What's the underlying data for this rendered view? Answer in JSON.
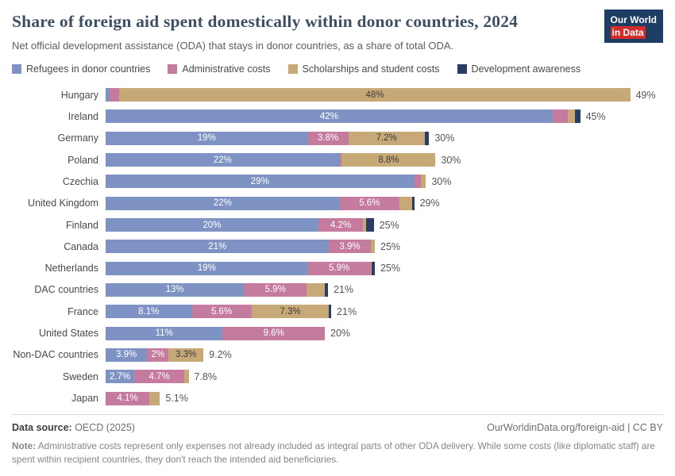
{
  "header": {
    "title": "Share of foreign aid spent domestically within donor countries, 2024",
    "subtitle": "Net official development assistance (ODA) that stays in donor countries, as a share of total ODA.",
    "logo": {
      "line1": "Our World",
      "line2": "in Data"
    }
  },
  "legend": [
    {
      "label": "Refugees in donor countries",
      "color": "#7e93c4"
    },
    {
      "label": "Administrative costs",
      "color": "#c47b9d"
    },
    {
      "label": "Scholarships and student costs",
      "color": "#c7a877"
    },
    {
      "label": "Development awareness",
      "color": "#2b3d62"
    }
  ],
  "chart_data": {
    "type": "bar",
    "orientation": "horizontal",
    "stacked": true,
    "unit": "%",
    "xlim": [
      0,
      50
    ],
    "series_names": [
      "Refugees in donor countries",
      "Administrative costs",
      "Scholarships and student costs",
      "Development awareness"
    ],
    "rows": [
      {
        "country": "Hungary",
        "values": [
          0.4,
          0.9,
          48,
          0
        ],
        "labels": [
          "",
          "",
          "48%",
          ""
        ],
        "total": "49%"
      },
      {
        "country": "Ireland",
        "values": [
          42,
          1.4,
          0.7,
          0.5
        ],
        "labels": [
          "42%",
          "",
          "",
          ""
        ],
        "total": "45%"
      },
      {
        "country": "Germany",
        "values": [
          19,
          3.8,
          7.2,
          0.4
        ],
        "labels": [
          "19%",
          "3.8%",
          "7.2%",
          ""
        ],
        "total": "30%"
      },
      {
        "country": "Poland",
        "values": [
          22,
          0.2,
          8.8,
          0
        ],
        "labels": [
          "22%",
          "",
          "8.8%",
          ""
        ],
        "total": "30%"
      },
      {
        "country": "Czechia",
        "values": [
          29,
          0.6,
          0.5,
          0
        ],
        "labels": [
          "29%",
          "",
          "",
          ""
        ],
        "total": "30%"
      },
      {
        "country": "United Kingdom",
        "values": [
          22,
          5.6,
          1.2,
          0.2
        ],
        "labels": [
          "22%",
          "5.6%",
          "",
          ""
        ],
        "total": "29%"
      },
      {
        "country": "Finland",
        "values": [
          20,
          4.2,
          0.3,
          0.7
        ],
        "labels": [
          "20%",
          "4.2%",
          "",
          ""
        ],
        "total": "25%"
      },
      {
        "country": "Canada",
        "values": [
          21,
          3.9,
          0.4,
          0
        ],
        "labels": [
          "21%",
          "3.9%",
          "",
          ""
        ],
        "total": "25%"
      },
      {
        "country": "Netherlands",
        "values": [
          19,
          5.9,
          0.1,
          0.3
        ],
        "labels": [
          "19%",
          "5.9%",
          "",
          ""
        ],
        "total": "25%"
      },
      {
        "country": "DAC countries",
        "values": [
          13,
          5.9,
          1.7,
          0.3
        ],
        "labels": [
          "13%",
          "5.9%",
          "",
          ""
        ],
        "total": "21%"
      },
      {
        "country": "France",
        "values": [
          8.1,
          5.6,
          7.3,
          0.2
        ],
        "labels": [
          "8.1%",
          "5.6%",
          "7.3%",
          ""
        ],
        "total": "21%"
      },
      {
        "country": "United States",
        "values": [
          11,
          9.6,
          0,
          0
        ],
        "labels": [
          "11%",
          "9.6%",
          "",
          ""
        ],
        "total": "20%"
      },
      {
        "country": "Non-DAC countries",
        "values": [
          3.9,
          2,
          3.3,
          0
        ],
        "labels": [
          "3.9%",
          "2%",
          "3.3%",
          ""
        ],
        "total": "9.2%"
      },
      {
        "country": "Sweden",
        "values": [
          2.7,
          4.7,
          0.4,
          0
        ],
        "labels": [
          "2.7%",
          "4.7%",
          "",
          ""
        ],
        "total": "7.8%"
      },
      {
        "country": "Japan",
        "values": [
          0,
          4.1,
          1.0,
          0
        ],
        "labels": [
          "",
          "4.1%",
          "",
          ""
        ],
        "total": "5.1%"
      }
    ]
  },
  "footer": {
    "source_label": "Data source:",
    "source_value": " OECD (2025)",
    "link": "OurWorldinData.org/foreign-aid | CC BY",
    "note_label": "Note:",
    "note_text": " Administrative costs represent only expenses not already included as integral parts of other ODA delivery. While some costs (like diplomatic staff) are spent within recipient countries, they don't reach the intended aid beneficiaries."
  }
}
